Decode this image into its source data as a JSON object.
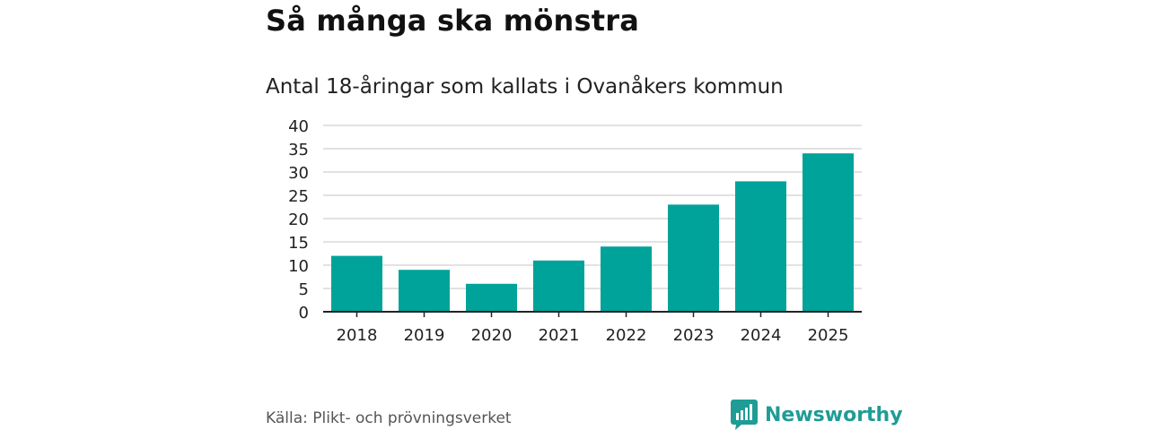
{
  "header": {
    "title": "Så många ska mönstra",
    "subtitle": "Antal 18-åringar som kallats i Ovanåkers kommun"
  },
  "chart_data": {
    "type": "bar",
    "categories": [
      "2018",
      "2019",
      "2020",
      "2021",
      "2022",
      "2023",
      "2024",
      "2025"
    ],
    "values": [
      12,
      9,
      6,
      11,
      14,
      23,
      28,
      34
    ],
    "ylim": [
      0,
      40
    ],
    "yticks": [
      0,
      5,
      10,
      15,
      20,
      25,
      30,
      35,
      40
    ],
    "xlabel": "",
    "ylabel": "",
    "grid": true,
    "bar_color": "#00a39a"
  },
  "footer": {
    "source": "Källa: Plikt- och prövningsverket",
    "brand": "Newsworthy",
    "brand_icon": "newsworthy-logo-icon",
    "brand_color": "#1f9c95"
  }
}
